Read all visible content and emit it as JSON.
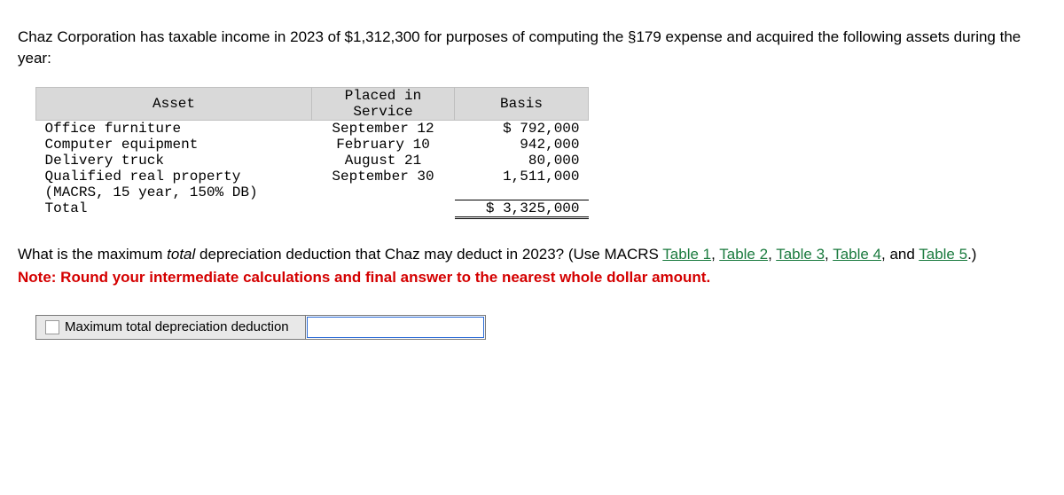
{
  "intro": "Chaz Corporation has taxable income in 2023 of $1,312,300 for purposes of computing the §179 expense and acquired the following assets during the year:",
  "table": {
    "headers": {
      "asset": "Asset",
      "service": "Placed in\nService",
      "basis": "Basis"
    },
    "rows": [
      {
        "asset": "Office furniture",
        "service": "September 12",
        "basis": "$ 792,000"
      },
      {
        "asset": "Computer equipment",
        "service": "February 10",
        "basis": "942,000"
      },
      {
        "asset": "Delivery truck",
        "service": "August 21",
        "basis": "80,000"
      },
      {
        "asset": "Qualified real property (MACRS, 15 year, 150% DB)",
        "service": "September 30",
        "basis": "1,511,000"
      }
    ],
    "total_label": "Total",
    "total_value": "$ 3,325,000"
  },
  "question": {
    "pre": "What is the maximum ",
    "ital": "total",
    "mid": " depreciation deduction that Chaz may deduct in 2023? (Use MACRS ",
    "links": [
      "Table 1",
      "Table 2",
      "Table 3",
      "Table 4",
      "Table 5"
    ],
    "sep": ", ",
    "and": ", and ",
    "post": ".)"
  },
  "note": "Note: Round your intermediate calculations and final answer to the nearest whole dollar amount.",
  "answer": {
    "label": "Maximum total depreciation deduction",
    "value": ""
  }
}
